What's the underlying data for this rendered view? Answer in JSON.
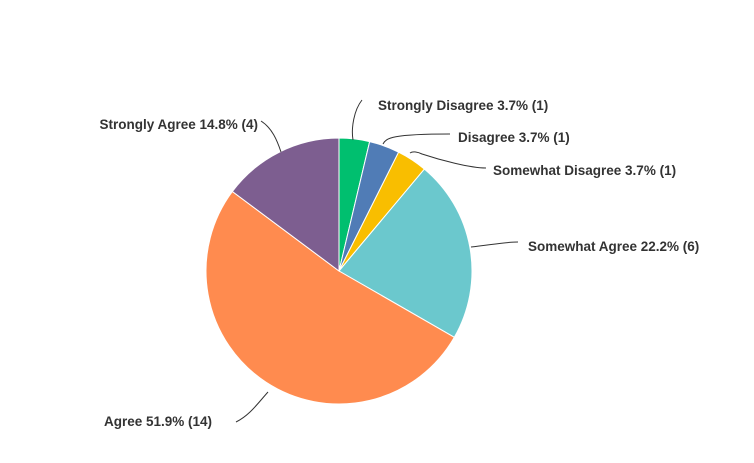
{
  "chart_data": {
    "type": "pie",
    "title": "",
    "slices": [
      {
        "label": "Strongly Disagree",
        "percent": 3.7,
        "count": 1,
        "color": "#00bf6f",
        "text": "Strongly Disagree 3.7% (1)"
      },
      {
        "label": "Disagree",
        "percent": 3.7,
        "count": 1,
        "color": "#507cb6",
        "text": "Disagree 3.7% (1)"
      },
      {
        "label": "Somewhat Disagree",
        "percent": 3.7,
        "count": 1,
        "color": "#f9be00",
        "text": "Somewhat Disagree 3.7% (1)"
      },
      {
        "label": "Somewhat Agree",
        "percent": 22.2,
        "count": 6,
        "color": "#6bc8cd",
        "text": "Somewhat Agree 22.2% (6)"
      },
      {
        "label": "Agree",
        "percent": 51.9,
        "count": 14,
        "color": "#ff8b4f",
        "text": "Agree 51.9% (14)"
      },
      {
        "label": "Strongly Agree",
        "percent": 14.8,
        "count": 4,
        "color": "#7d5e90",
        "text": "Strongly Agree 14.8% (4)"
      }
    ],
    "start_angle_deg": 0,
    "direction": "clockwise"
  }
}
